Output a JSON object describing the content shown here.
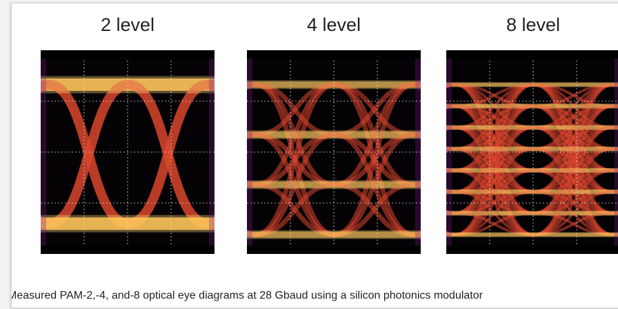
{
  "panels": [
    {
      "title": "2 level"
    },
    {
      "title": "4 level"
    },
    {
      "title": "8 level"
    }
  ],
  "caption": "Measured PAM-2,-4, and-8 optical eye diagrams at 28 Gbaud using a silicon photonics modulator"
}
